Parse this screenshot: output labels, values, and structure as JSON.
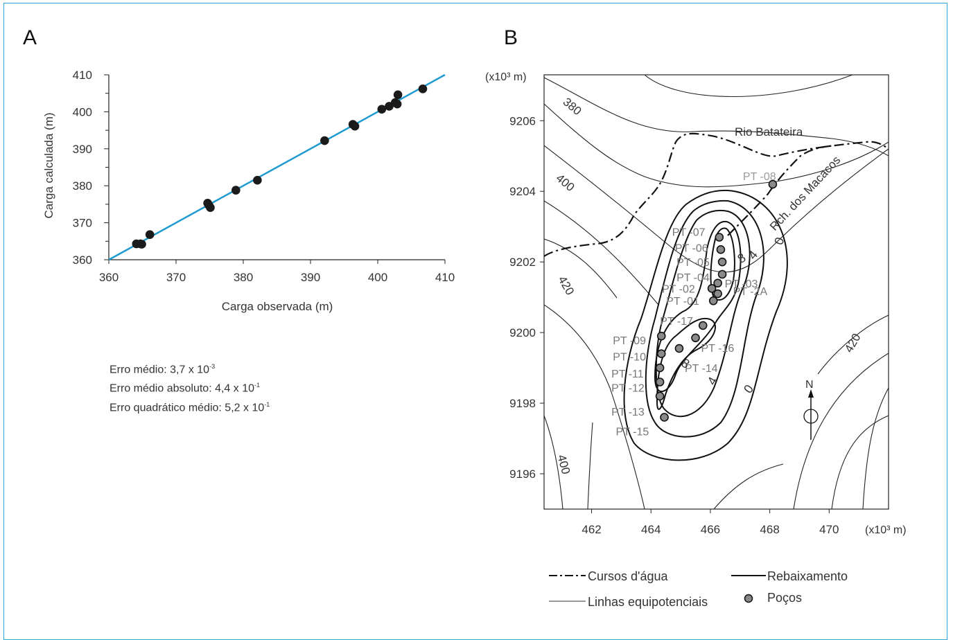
{
  "panels": {
    "a_label": "A",
    "b_label": "B"
  },
  "stats": {
    "erro_medio": "Erro médio: 3,7 x 10",
    "erro_medio_exp": "-3",
    "erro_medio_absoluto": "Erro médio absoluto: 4,4 x 10",
    "erro_medio_absoluto_exp": "-1",
    "erro_quadratico": "Erro quadrático médio: 5,2 x 10",
    "erro_quadratico_exp": "-1"
  },
  "chart_data": [
    {
      "type": "scatter",
      "panel": "A",
      "xlabel": "Carga observada (m)",
      "ylabel": "Carga calculada (m)",
      "xlim": [
        360,
        410
      ],
      "ylim": [
        360,
        410
      ],
      "xticks": [
        "360",
        "370",
        "380",
        "390",
        "400",
        "410"
      ],
      "yticks": [
        "360",
        "370",
        "380",
        "390",
        "400",
        "410"
      ],
      "reference_line": {
        "from": [
          360,
          360
        ],
        "to": [
          410,
          410
        ],
        "color": "#1f9bd0"
      },
      "points": [
        [
          364.1,
          364.3
        ],
        [
          364.7,
          364.3
        ],
        [
          364.9,
          364.2
        ],
        [
          366.1,
          366.8
        ],
        [
          374.7,
          375.3
        ],
        [
          374.9,
          374.7
        ],
        [
          375.1,
          374.1
        ],
        [
          378.9,
          378.8
        ],
        [
          382.1,
          381.5
        ],
        [
          392.1,
          392.2
        ],
        [
          396.3,
          396.6
        ],
        [
          396.6,
          396.1
        ],
        [
          400.6,
          400.7
        ],
        [
          401.7,
          401.5
        ],
        [
          402.6,
          402.5
        ],
        [
          402.9,
          402.1
        ],
        [
          403.0,
          404.6
        ],
        [
          406.7,
          406.2
        ]
      ]
    },
    {
      "type": "map",
      "panel": "B",
      "x_unit": "(x10³ m)",
      "y_unit": "(x10³ m)",
      "xlim": [
        460.4,
        472
      ],
      "ylim": [
        9195,
        9207.3
      ],
      "xticks": [
        "462",
        "464",
        "466",
        "468",
        "470"
      ],
      "yticks": [
        "9196",
        "9198",
        "9200",
        "9202",
        "9204",
        "9206"
      ],
      "equipotential_labels": [
        "380",
        "400",
        "420",
        "420",
        "400"
      ],
      "drawdown_labels": [
        "0",
        "4",
        "8",
        "8",
        "4",
        "0"
      ],
      "river_labels": [
        "Rio Batateira",
        "Rch. dos Macacos"
      ],
      "north_label": "N",
      "wells": [
        {
          "name": "PT -08",
          "x": 468.1,
          "y": 9204.2,
          "label_color": "#9a9a9a"
        },
        {
          "name": "PT -07",
          "x": 466.3,
          "y": 9202.7
        },
        {
          "name": "PT -06",
          "x": 466.35,
          "y": 9202.35
        },
        {
          "name": "PT -05",
          "x": 466.4,
          "y": 9202.0
        },
        {
          "name": "PT -04",
          "x": 466.4,
          "y": 9201.65
        },
        {
          "name": "PT -03",
          "x": 466.25,
          "y": 9201.4
        },
        {
          "name": "PT -02",
          "x": 466.05,
          "y": 9201.25
        },
        {
          "name": "PT -2A",
          "x": 466.25,
          "y": 9201.1
        },
        {
          "name": "PT -01",
          "x": 466.1,
          "y": 9200.9
        },
        {
          "name": "PT -17",
          "x": 465.75,
          "y": 9200.2
        },
        {
          "name": "PT -16",
          "x": 465.5,
          "y": 9199.85
        },
        {
          "name": "PT -14",
          "x": 464.95,
          "y": 9199.55
        },
        {
          "name": "PT -09",
          "x": 464.35,
          "y": 9199.9
        },
        {
          "name": "PT -10",
          "x": 464.35,
          "y": 9199.4
        },
        {
          "name": "PT -11",
          "x": 464.3,
          "y": 9199.0
        },
        {
          "name": "PT -12",
          "x": 464.3,
          "y": 9198.6
        },
        {
          "name": "PT -13",
          "x": 464.3,
          "y": 9198.2
        },
        {
          "name": "PT -15",
          "x": 464.45,
          "y": 9197.6
        }
      ],
      "legend": [
        {
          "label": "Cursos d'água",
          "style": "dash-dot"
        },
        {
          "label": "Rebaixamento",
          "style": "thick"
        },
        {
          "label": "Linhas equipotenciais",
          "style": "gray"
        },
        {
          "label": "Poços",
          "style": "dot"
        }
      ]
    }
  ]
}
